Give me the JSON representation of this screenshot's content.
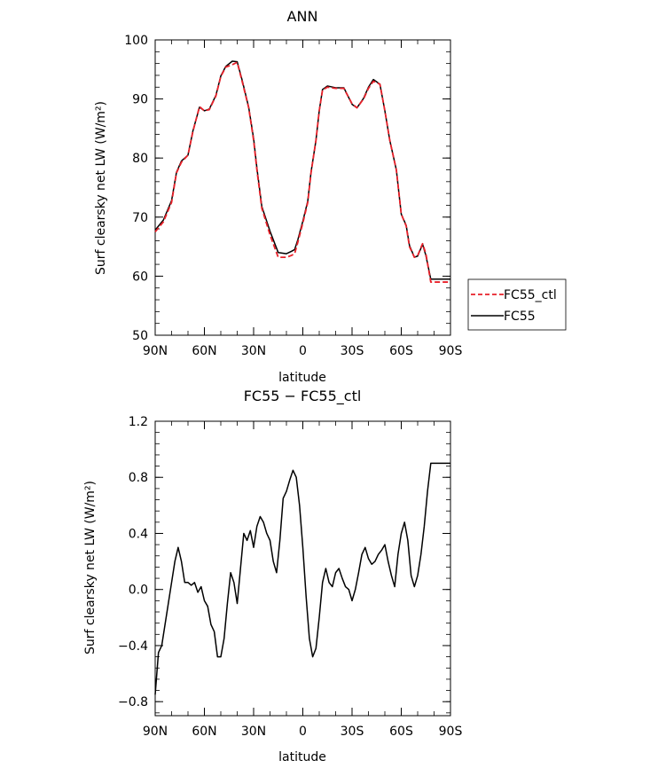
{
  "chart_data": [
    {
      "type": "line",
      "title": "ANN",
      "xlabel": "latitude",
      "ylabel": "Surf clearsky net LW (W/m²)",
      "xlim": [
        90,
        -90
      ],
      "ylim": [
        50,
        100
      ],
      "xticks": [
        90,
        60,
        30,
        0,
        -30,
        -60,
        -90
      ],
      "xticklabels": [
        "90N",
        "60N",
        "30N",
        "0",
        "30S",
        "60S",
        "90S"
      ],
      "yticks": [
        50,
        60,
        70,
        80,
        90,
        100
      ],
      "yticklabels": [
        "50",
        "60",
        "70",
        "80",
        "90",
        "100"
      ],
      "legend": {
        "position": "right",
        "entries": [
          "FC55_ctl",
          "FC55"
        ]
      },
      "series": [
        {
          "name": "FC55_ctl",
          "color": "#e8212a",
          "dash": "dashed",
          "x": [
            90,
            85,
            80,
            77,
            74,
            70,
            67,
            63,
            60,
            57,
            53,
            50,
            47,
            43,
            40,
            37,
            33,
            30,
            28,
            25,
            20,
            15,
            10,
            7,
            5,
            3,
            0,
            -3,
            -5,
            -8,
            -10,
            -12,
            -15,
            -20,
            -25,
            -30,
            -33,
            -37,
            -40,
            -43,
            -47,
            -50,
            -53,
            -57,
            -60,
            -63,
            -65,
            -68,
            -70,
            -73,
            -75,
            -78,
            -80,
            -83,
            -85,
            -87,
            -90
          ],
          "values": [
            67.5,
            69.2,
            72.5,
            77.5,
            79.3,
            80.5,
            84.5,
            88.7,
            88.0,
            88.2,
            90.5,
            93.8,
            95.4,
            95.8,
            96.2,
            93.0,
            88.5,
            83.0,
            78.0,
            71.5,
            67.0,
            63.2,
            63.2,
            63.5,
            63.8,
            65.8,
            69.0,
            72.5,
            77.5,
            83.0,
            88.0,
            91.5,
            92.0,
            91.8,
            91.8,
            89.2,
            88.5,
            90.0,
            91.8,
            93.0,
            92.5,
            88.0,
            83.0,
            78.0,
            70.5,
            68.5,
            65.0,
            63.2,
            63.5,
            65.5,
            63.8,
            59.0,
            59.0,
            59.0,
            59.0,
            59.0,
            59.0
          ]
        },
        {
          "name": "FC55",
          "color": "#000000",
          "dash": "solid",
          "x": [
            90,
            85,
            80,
            77,
            74,
            70,
            67,
            63,
            60,
            57,
            53,
            50,
            47,
            43,
            40,
            37,
            33,
            30,
            28,
            25,
            20,
            15,
            10,
            7,
            5,
            3,
            0,
            -3,
            -5,
            -8,
            -10,
            -12,
            -15,
            -20,
            -25,
            -30,
            -33,
            -37,
            -40,
            -43,
            -47,
            -50,
            -53,
            -57,
            -60,
            -63,
            -65,
            -68,
            -70,
            -73,
            -75,
            -78,
            -80,
            -83,
            -85,
            -87,
            -90
          ],
          "values": [
            67.8,
            69.5,
            72.8,
            77.6,
            79.5,
            80.5,
            84.6,
            88.6,
            88.0,
            88.3,
            90.6,
            93.9,
            95.5,
            96.4,
            96.3,
            93.2,
            88.6,
            83.3,
            78.3,
            71.8,
            67.6,
            64.0,
            63.8,
            64.2,
            64.5,
            66.2,
            69.3,
            72.7,
            77.6,
            83.0,
            88.0,
            91.6,
            92.2,
            91.9,
            91.9,
            89.1,
            88.5,
            90.1,
            92.0,
            93.3,
            92.5,
            88.0,
            83.0,
            78.0,
            70.5,
            68.6,
            65.2,
            63.2,
            63.4,
            65.4,
            63.5,
            59.5,
            59.5,
            59.5,
            59.5,
            59.5,
            59.5
          ]
        }
      ]
    },
    {
      "type": "line",
      "title": "FC55 − FC55_ctl",
      "xlabel": "latitude",
      "ylabel": "Surf clearsky net LW (W/m²)",
      "xlim": [
        90,
        -90
      ],
      "ylim": [
        -0.9,
        1.2
      ],
      "xticks": [
        90,
        60,
        30,
        0,
        -30,
        -60,
        -90
      ],
      "xticklabels": [
        "90N",
        "60N",
        "30N",
        "0",
        "30S",
        "60S",
        "90S"
      ],
      "yticks": [
        -0.8,
        -0.4,
        0.0,
        0.4,
        0.8,
        1.2
      ],
      "yticklabels": [
        "−0.8",
        "−0.4",
        "0.0",
        "0.4",
        "0.8",
        "1.2"
      ],
      "series": [
        {
          "color": "#000000",
          "x": [
            90,
            88,
            86,
            84,
            82,
            80,
            78,
            76,
            74,
            72,
            70,
            68,
            66,
            64,
            62,
            60,
            58,
            56,
            54,
            52,
            50,
            48,
            46,
            44,
            42,
            40,
            38,
            36,
            34,
            32,
            30,
            28,
            26,
            24,
            22,
            20,
            18,
            16,
            14,
            12,
            10,
            8,
            6,
            4,
            2,
            0,
            -2,
            -4,
            -6,
            -8,
            -10,
            -12,
            -14,
            -16,
            -18,
            -20,
            -22,
            -24,
            -26,
            -28,
            -30,
            -32,
            -34,
            -36,
            -38,
            -40,
            -42,
            -44,
            -46,
            -48,
            -50,
            -52,
            -54,
            -56,
            -58,
            -60,
            -62,
            -64,
            -66,
            -68,
            -70,
            -72,
            -74,
            -76,
            -78,
            -80,
            -82,
            -84,
            -86,
            -88,
            -90
          ],
          "values": [
            -0.75,
            -0.45,
            -0.4,
            -0.25,
            -0.1,
            0.05,
            0.2,
            0.3,
            0.2,
            0.05,
            0.05,
            0.03,
            0.05,
            -0.02,
            0.02,
            -0.08,
            -0.12,
            -0.25,
            -0.3,
            -0.48,
            -0.48,
            -0.35,
            -0.1,
            0.12,
            0.05,
            -0.1,
            0.15,
            0.4,
            0.35,
            0.42,
            0.3,
            0.45,
            0.52,
            0.48,
            0.4,
            0.35,
            0.2,
            0.12,
            0.35,
            0.65,
            0.7,
            0.78,
            0.85,
            0.8,
            0.6,
            0.3,
            -0.05,
            -0.35,
            -0.48,
            -0.42,
            -0.2,
            0.05,
            0.15,
            0.05,
            0.02,
            0.12,
            0.15,
            0.08,
            0.02,
            0.0,
            -0.08,
            0.0,
            0.12,
            0.25,
            0.3,
            0.22,
            0.18,
            0.2,
            0.25,
            0.28,
            0.32,
            0.2,
            0.1,
            0.02,
            0.25,
            0.4,
            0.48,
            0.35,
            0.1,
            0.02,
            0.1,
            0.25,
            0.45,
            0.7,
            0.9,
            0.9,
            0.9,
            0.9,
            0.9,
            0.9,
            0.9
          ]
        }
      ]
    }
  ]
}
